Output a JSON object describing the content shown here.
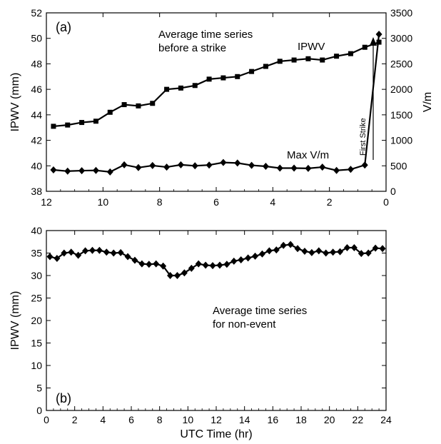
{
  "chart_data": [
    {
      "type": "line",
      "panel_label": "(a)",
      "xlabel": "",
      "ylabel": "IPWV (mm)",
      "y2label": "V/m",
      "xlim": [
        12,
        0
      ],
      "xticks": [
        12,
        10,
        8,
        6,
        4,
        2,
        0
      ],
      "ylim": [
        38,
        52
      ],
      "yticks": [
        38,
        40,
        42,
        44,
        46,
        48,
        50,
        52
      ],
      "y2lim": [
        0,
        3500
      ],
      "y2ticks": [
        0,
        500,
        1000,
        1500,
        2000,
        2500,
        3000,
        3500
      ],
      "annotations": {
        "title_line1": "Average time series",
        "title_line2": "before a strike",
        "ipwv_label": "IPWV",
        "maxv_label": "Max V/m",
        "first_strike": "First Strike"
      },
      "series": [
        {
          "name": "IPWV",
          "axis": "left",
          "marker": "square",
          "x": [
            11.75,
            11.25,
            10.75,
            10.25,
            9.75,
            9.25,
            8.75,
            8.25,
            7.75,
            7.25,
            6.75,
            6.25,
            5.75,
            5.25,
            4.75,
            4.25,
            3.75,
            3.25,
            2.75,
            2.25,
            1.75,
            1.25,
            0.75,
            0.25
          ],
          "y": [
            43.1,
            43.2,
            43.4,
            43.5,
            44.2,
            44.8,
            44.7,
            44.9,
            46.0,
            46.1,
            46.3,
            46.8,
            46.9,
            47.0,
            47.4,
            47.8,
            48.2,
            48.3,
            48.4,
            48.3,
            48.6,
            48.8,
            49.3,
            49.7
          ]
        },
        {
          "name": "Max V/m",
          "axis": "right",
          "marker": "diamond",
          "x": [
            11.75,
            11.25,
            10.75,
            10.25,
            9.75,
            9.25,
            8.75,
            8.25,
            7.75,
            7.25,
            6.75,
            6.25,
            5.75,
            5.25,
            4.75,
            4.25,
            3.75,
            3.25,
            2.75,
            2.25,
            1.75,
            1.25,
            0.75,
            0.25
          ],
          "y": [
            420,
            395,
            405,
            410,
            380,
            520,
            465,
            505,
            475,
            520,
            500,
            515,
            565,
            555,
            510,
            490,
            455,
            455,
            450,
            475,
            410,
            430,
            515,
            3080
          ]
        }
      ]
    },
    {
      "type": "line",
      "panel_label": "(b)",
      "xlabel": "UTC Time (hr)",
      "ylabel": "IPWV (mm)",
      "xlim": [
        0,
        24
      ],
      "xticks": [
        0,
        2,
        4,
        6,
        8,
        10,
        12,
        14,
        16,
        18,
        20,
        22,
        24
      ],
      "ylim": [
        0,
        40
      ],
      "yticks": [
        0,
        5,
        10,
        15,
        20,
        25,
        30,
        35,
        40
      ],
      "annotations": {
        "title_line1": "Average time series",
        "title_line2": "for non-event"
      },
      "series": [
        {
          "name": "",
          "marker": "diamond",
          "x": [
            0.25,
            0.75,
            1.25,
            1.75,
            2.25,
            2.75,
            3.25,
            3.75,
            4.25,
            4.75,
            5.25,
            5.75,
            6.25,
            6.75,
            7.25,
            7.75,
            8.25,
            8.75,
            9.25,
            9.75,
            10.25,
            10.75,
            11.25,
            11.75,
            12.25,
            12.75,
            13.25,
            13.75,
            14.25,
            14.75,
            15.25,
            15.75,
            16.25,
            16.75,
            17.25,
            17.75,
            18.25,
            18.75,
            19.25,
            19.75,
            20.25,
            20.75,
            21.25,
            21.75,
            22.25,
            22.75,
            23.25,
            23.75
          ],
          "y": [
            34.2,
            33.8,
            35.0,
            35.2,
            34.5,
            35.5,
            35.6,
            35.6,
            35.2,
            35.0,
            35.1,
            34.2,
            33.4,
            32.6,
            32.5,
            32.6,
            32.1,
            30.0,
            30.0,
            30.6,
            31.6,
            32.6,
            32.3,
            32.2,
            32.3,
            32.5,
            33.2,
            33.5,
            33.9,
            34.3,
            34.8,
            35.5,
            35.7,
            36.7,
            36.9,
            36.0,
            35.4,
            35.1,
            35.5,
            35.0,
            35.2,
            35.3,
            36.2,
            36.2,
            34.9,
            35.0,
            36.1,
            36.0
          ]
        }
      ]
    }
  ]
}
